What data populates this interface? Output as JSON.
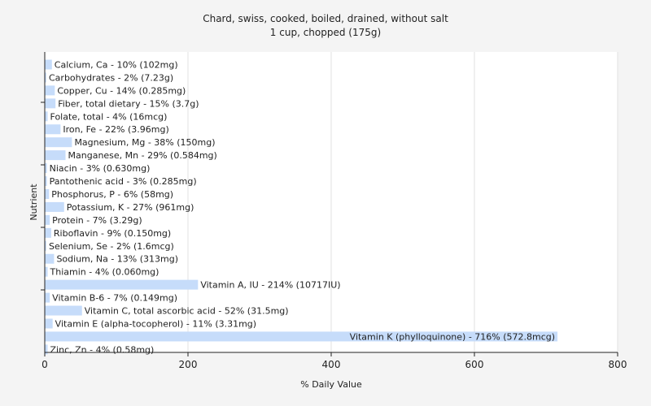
{
  "chart_data": {
    "type": "bar",
    "orientation": "horizontal",
    "title": "Chard, swiss, cooked, boiled, drained, without salt",
    "subtitle": "1 cup, chopped (175g)",
    "xlabel": "% Daily Value",
    "ylabel": "Nutrient",
    "xlim": [
      0,
      800
    ],
    "xticks": [
      0,
      200,
      400,
      600,
      800
    ],
    "grid": true,
    "bar_color": "#c6dcfa",
    "bars": [
      {
        "name": "Calcium, Ca",
        "value": 10,
        "label": "Calcium, Ca - 10% (102mg)"
      },
      {
        "name": "Carbohydrates",
        "value": 2,
        "label": "Carbohydrates - 2% (7.23g)"
      },
      {
        "name": "Copper, Cu",
        "value": 14,
        "label": "Copper, Cu - 14% (0.285mg)"
      },
      {
        "name": "Fiber, total dietary",
        "value": 15,
        "label": "Fiber, total dietary - 15% (3.7g)"
      },
      {
        "name": "Folate, total",
        "value": 4,
        "label": "Folate, total - 4% (16mcg)"
      },
      {
        "name": "Iron, Fe",
        "value": 22,
        "label": "Iron, Fe - 22% (3.96mg)"
      },
      {
        "name": "Magnesium, Mg",
        "value": 38,
        "label": "Magnesium, Mg - 38% (150mg)"
      },
      {
        "name": "Manganese, Mn",
        "value": 29,
        "label": "Manganese, Mn - 29% (0.584mg)"
      },
      {
        "name": "Niacin",
        "value": 3,
        "label": "Niacin - 3% (0.630mg)"
      },
      {
        "name": "Pantothenic acid",
        "value": 3,
        "label": "Pantothenic acid - 3% (0.285mg)"
      },
      {
        "name": "Phosphorus, P",
        "value": 6,
        "label": "Phosphorus, P - 6% (58mg)"
      },
      {
        "name": "Potassium, K",
        "value": 27,
        "label": "Potassium, K - 27% (961mg)"
      },
      {
        "name": "Protein",
        "value": 7,
        "label": "Protein - 7% (3.29g)"
      },
      {
        "name": "Riboflavin",
        "value": 9,
        "label": "Riboflavin - 9% (0.150mg)"
      },
      {
        "name": "Selenium, Se",
        "value": 2,
        "label": "Selenium, Se - 2% (1.6mcg)"
      },
      {
        "name": "Sodium, Na",
        "value": 13,
        "label": "Sodium, Na - 13% (313mg)"
      },
      {
        "name": "Thiamin",
        "value": 4,
        "label": "Thiamin - 4% (0.060mg)"
      },
      {
        "name": "Vitamin A, IU",
        "value": 214,
        "label": "Vitamin A, IU - 214% (10717IU)"
      },
      {
        "name": "Vitamin B-6",
        "value": 7,
        "label": "Vitamin B-6 - 7% (0.149mg)"
      },
      {
        "name": "Vitamin C, total ascorbic acid",
        "value": 52,
        "label": "Vitamin C, total ascorbic acid - 52% (31.5mg)"
      },
      {
        "name": "Vitamin E (alpha-tocopherol)",
        "value": 11,
        "label": "Vitamin E (alpha-tocopherol) - 11% (3.31mg)"
      },
      {
        "name": "Vitamin K (phylloquinone)",
        "value": 716,
        "label": "Vitamin K (phylloquinone) - 716% (572.8mcg)"
      },
      {
        "name": "Zinc, Zn",
        "value": 4,
        "label": "Zinc, Zn - 4% (0.58mg)"
      }
    ]
  }
}
